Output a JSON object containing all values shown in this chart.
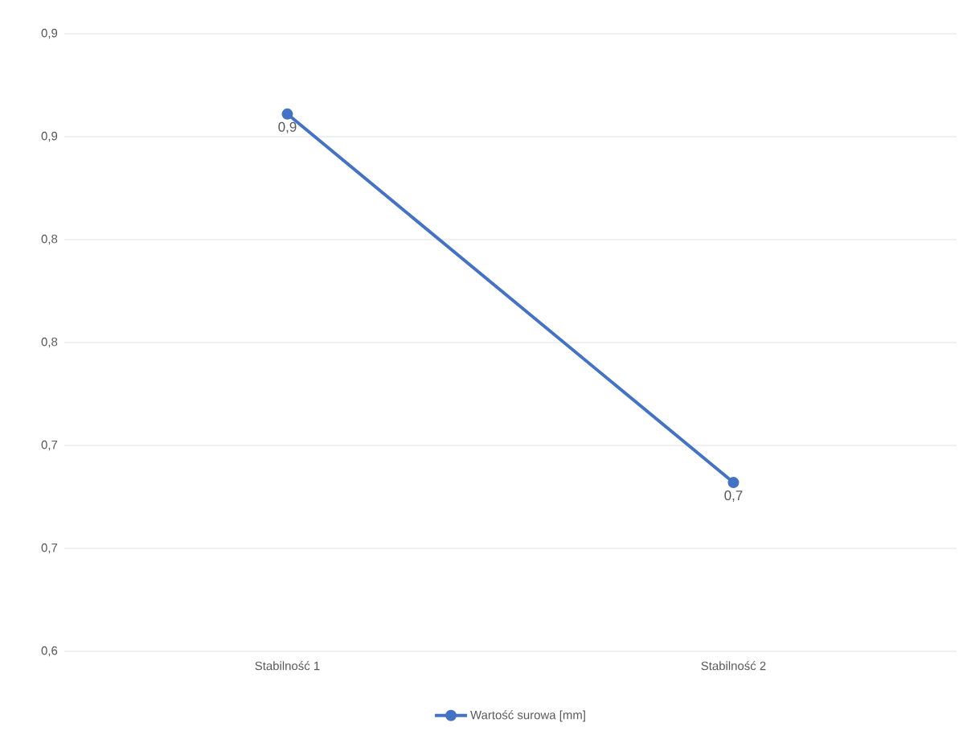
{
  "chart_data": {
    "type": "line",
    "categories": [
      "Stabilność 1",
      "Stabilność 2"
    ],
    "series": [
      {
        "name": "Wartość surowa [mm]",
        "color": "#4472c4",
        "values": [
          0.861,
          0.682
        ],
        "value_labels": [
          "0,9",
          "0,7"
        ]
      }
    ],
    "ylim": [
      0.6,
      0.9
    ],
    "yticks": [
      {
        "value": 0.6,
        "label": "0,6"
      },
      {
        "value": 0.65,
        "label": "0,7"
      },
      {
        "value": 0.7,
        "label": "0,7"
      },
      {
        "value": 0.75,
        "label": "0,8"
      },
      {
        "value": 0.8,
        "label": "0,8"
      },
      {
        "value": 0.85,
        "label": "0,9"
      },
      {
        "value": 0.9,
        "label": "0,9"
      }
    ],
    "grid": "y",
    "legend": "bottom",
    "marker": "circle",
    "line_style": "solid"
  }
}
